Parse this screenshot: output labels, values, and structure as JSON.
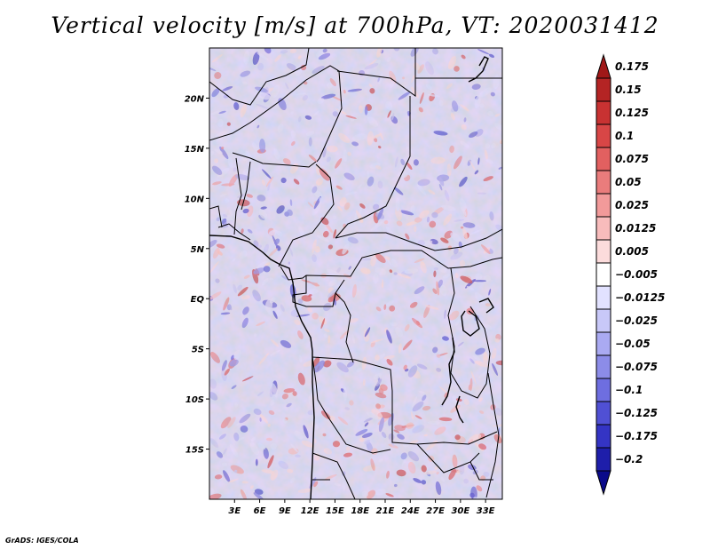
{
  "title": "Vertical velocity [m/s] at 700hPa, VT: 2020031412",
  "credit": "GrADS: IGES/COLA",
  "chart_data": {
    "type": "heatmap",
    "title": "Vertical velocity [m/s] at 700hPa, VT: 2020031412",
    "variable": "Vertical velocity",
    "units": "m/s",
    "level": "700hPa",
    "valid_time": "2020031412",
    "lon_range": [
      0,
      35
    ],
    "lat_range": [
      -20,
      25
    ],
    "x_ticks": [
      3,
      6,
      9,
      12,
      15,
      18,
      21,
      24,
      27,
      30,
      33
    ],
    "x_tick_labels": [
      "3E",
      "6E",
      "9E",
      "12E",
      "15E",
      "18E",
      "21E",
      "24E",
      "27E",
      "30E",
      "33E"
    ],
    "y_ticks": [
      20,
      15,
      10,
      5,
      0,
      -5,
      -10,
      -15
    ],
    "y_tick_labels": [
      "20N",
      "15N",
      "10N",
      "5N",
      "EQ",
      "5S",
      "10S",
      "15S"
    ],
    "colorbar": {
      "labels": [
        "0.175",
        "0.15",
        "0.125",
        "0.1",
        "0.075",
        "0.05",
        "0.025",
        "0.0125",
        "0.005",
        "−0.005",
        "−0.0125",
        "−0.025",
        "−0.05",
        "−0.075",
        "−0.1",
        "−0.125",
        "−0.175",
        "−0.2"
      ],
      "colors": [
        "#a01818",
        "#b42424",
        "#c83232",
        "#d84646",
        "#e26060",
        "#ea7c7c",
        "#f29a9a",
        "#f8bcbc",
        "#fcdcdc",
        "#ffffff",
        "#e2e2ff",
        "#c8c8f8",
        "#aaaaf2",
        "#8c8ce8",
        "#6e6ee0",
        "#5050d4",
        "#3434c4",
        "#1e1eaa",
        "#0a0a8a"
      ]
    }
  }
}
